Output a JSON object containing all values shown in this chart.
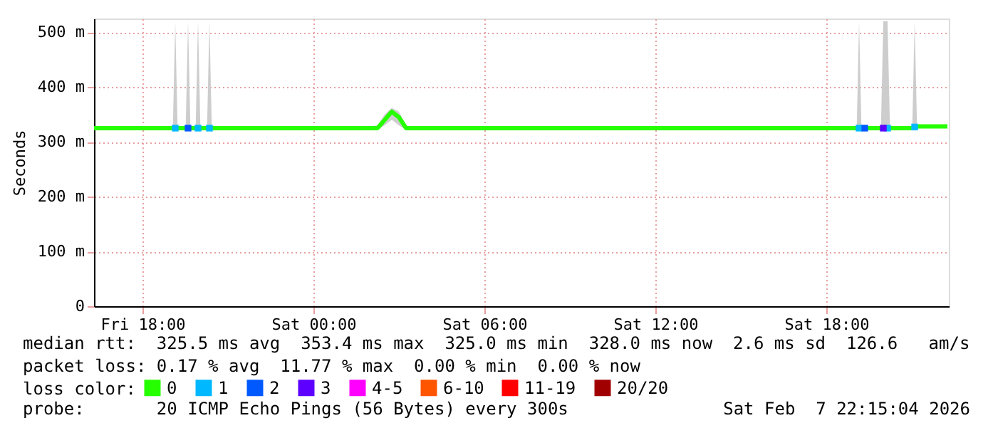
{
  "chart_data": {
    "type": "line",
    "ylabel": "Seconds",
    "xlim": [
      "2026-02-06T16:18",
      "2026-02-07T22:18"
    ],
    "xticks": [
      {
        "value": "2026-02-06T18:00",
        "label": "Fri 18:00"
      },
      {
        "value": "2026-02-07T00:00",
        "label": "Sat 00:00"
      },
      {
        "value": "2026-02-07T06:00",
        "label": "Sat 06:00"
      },
      {
        "value": "2026-02-07T12:00",
        "label": "Sat 12:00"
      },
      {
        "value": "2026-02-07T18:00",
        "label": "Sat 18:00"
      }
    ],
    "ylim": [
      0,
      525
    ],
    "yticks": [
      0,
      {
        "value": 100,
        "label": "100 m"
      },
      {
        "value": 200,
        "label": "200 m"
      },
      {
        "value": 300,
        "label": "300 m"
      },
      {
        "value": 400,
        "label": "400 m"
      },
      {
        "value": 500,
        "label": "500 m"
      }
    ],
    "grid": true,
    "legend": "bottom",
    "legend_title": "loss color:",
    "series": [
      {
        "name": "0",
        "color": "#26ff00",
        "x": [
          "2026-02-06T16:18",
          "2026-02-06T19:04",
          "2026-02-06T19:09",
          "2026-02-06T19:14",
          "2026-02-06T19:31",
          "2026-02-06T19:36",
          "2026-02-06T19:41",
          "2026-02-06T19:52",
          "2026-02-06T19:57",
          "2026-02-06T20:02",
          "2026-02-06T20:16",
          "2026-02-06T20:21",
          "2026-02-06T20:26",
          "2026-02-07T01:45",
          "2026-02-07T02:15",
          "2026-02-07T02:30",
          "2026-02-07T02:45",
          "2026-02-07T03:00",
          "2026-02-07T03:15",
          "2026-02-07T03:30",
          "2026-02-07T19:04",
          "2026-02-07T19:09",
          "2026-02-07T19:14",
          "2026-02-07T19:55",
          "2026-02-07T20:00",
          "2026-02-07T20:09",
          "2026-02-07T20:14",
          "2026-02-07T21:01",
          "2026-02-07T21:06",
          "2026-02-07T21:11",
          "2026-02-07T22:15"
        ],
        "values": [
          325,
          325,
          325,
          325,
          325,
          325,
          325,
          325,
          325,
          325,
          325,
          325,
          325,
          325,
          325,
          340,
          355,
          345,
          325,
          325,
          325,
          325,
          325,
          325,
          325,
          325,
          325,
          325,
          325,
          328,
          328
        ],
        "lower": [
          325,
          325,
          325,
          325,
          325,
          325,
          325,
          325,
          325,
          325,
          325,
          325,
          325,
          325,
          322,
          330,
          340,
          330,
          322,
          325,
          325,
          325,
          325,
          325,
          325,
          325,
          325,
          325,
          325,
          328,
          328
        ],
        "upper": [
          325,
          325,
          520,
          325,
          325,
          520,
          325,
          325,
          520,
          325,
          325,
          520,
          325,
          326,
          330,
          350,
          362,
          355,
          330,
          325,
          325,
          520,
          325,
          325,
          520,
          520,
          325,
          325,
          520,
          328,
          328
        ]
      },
      {
        "name": "1",
        "type": "scatter",
        "marker": "square",
        "color": "#00b8ff",
        "x": [
          "2026-02-06T19:09",
          "2026-02-06T19:57",
          "2026-02-06T20:21",
          "2026-02-07T19:09",
          "2026-02-07T20:09",
          "2026-02-07T21:06"
        ],
        "values": [
          325,
          325,
          325,
          325,
          325,
          327
        ]
      },
      {
        "name": "2",
        "type": "scatter",
        "marker": "square",
        "color": "#0059ff",
        "x": [
          "2026-02-06T19:36",
          "2026-02-07T19:21"
        ],
        "values": [
          325,
          325
        ]
      },
      {
        "name": "3",
        "type": "scatter",
        "marker": "square",
        "color": "#5e00ff",
        "x": [
          "2026-02-07T20:00"
        ],
        "values": [
          325
        ]
      },
      {
        "name": "4-5",
        "color": "#ff00ff"
      },
      {
        "name": "6-10",
        "color": "#ff5500"
      },
      {
        "name": "11-19",
        "color": "#ff0000"
      },
      {
        "name": "20/20",
        "color": "#a10000"
      }
    ],
    "annotations": [
      "median rtt:  325.5 ms avg  353.4 ms max  325.0 ms min  328.0 ms now  2.6 ms sd  126.6   am/s",
      "packet loss: 0.17 % avg  11.77 % max  0.00 % min  0.00 % now",
      "probe:       20 ICMP Echo Pings (56 Bytes) every 300s",
      "Sat Feb  7 22:15:04 2026"
    ]
  }
}
